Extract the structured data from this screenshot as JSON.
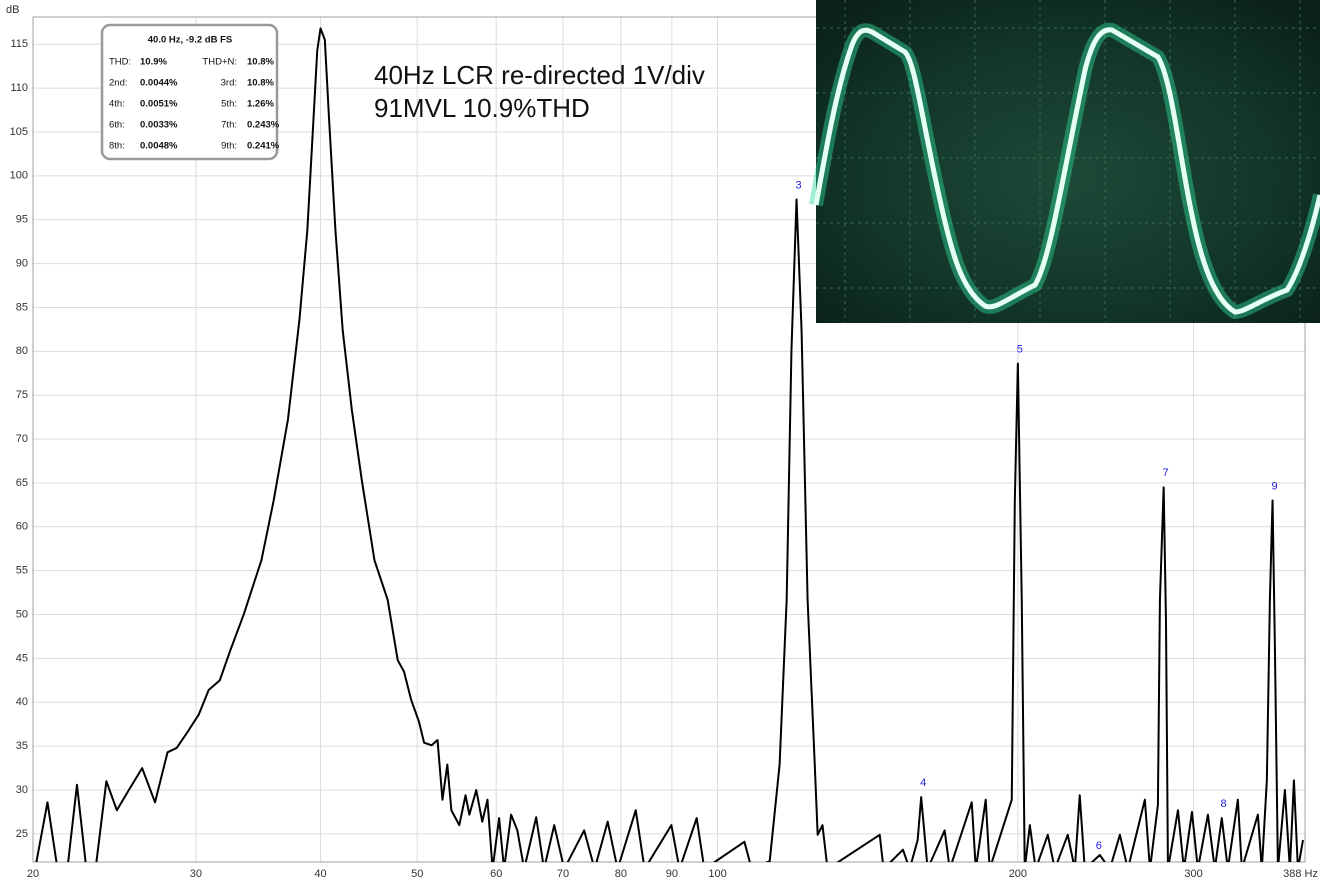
{
  "chart_data": {
    "type": "line",
    "ylabel": "dB",
    "annotations": [
      "40Hz LCR re-directed 1V/div",
      "91MVL 10.9%THD"
    ],
    "xscale": "log",
    "grid": true,
    "color": "#000000",
    "xlim": [
      20.6,
      388
    ],
    "ylim": [
      21.8,
      118.1
    ],
    "xticks": [
      20,
      30,
      40,
      50,
      60,
      70,
      80,
      90,
      100,
      200,
      300,
      {
        "value": 388,
        "label": "388 Hz"
      }
    ],
    "yticks": [
      25,
      30,
      35,
      40,
      45,
      50,
      55,
      60,
      65,
      70,
      75,
      80,
      85,
      90,
      95,
      100,
      105,
      110,
      115
    ],
    "x": [
      20.7,
      21.3,
      21.8,
      22.3,
      22.8,
      23.3,
      23.8,
      24.4,
      25.0,
      25.7,
      26.5,
      27.3,
      28.1,
      28.7,
      29.5,
      30.2,
      30.9,
      31.7,
      32.5,
      33.5,
      34.9,
      35.9,
      37.1,
      38.1,
      38.8,
      39.3,
      39.7,
      40,
      40.4,
      40.8,
      41.4,
      42.1,
      43.0,
      44.0,
      45.3,
      46.7,
      47.8,
      48.5,
      49.3,
      50.2,
      50.8,
      51.7,
      52.4,
      53.0,
      53.6,
      54.1,
      55.1,
      55.9,
      56.4,
      57.3,
      58.1,
      58.8,
      59.5,
      60.4,
      61.1,
      62.1,
      63.0,
      64.0,
      65.8,
      67.0,
      68.6,
      70.2,
      73.5,
      75.3,
      77.6,
      79.4,
      82.8,
      84.5,
      89.9,
      91.6,
      95.3,
      97.0,
      106.4,
      108.2,
      112.8,
      115.4,
      117.3,
      118.6,
      120,
      121.4,
      123.1,
      125.1,
      126.0,
      127.4,
      128.9,
      145.4,
      146.7,
      153.4,
      155.8,
      158.7,
      160,
      162.4,
      168.9,
      170.9,
      179.8,
      181.5,
      185.7,
      187.4,
      197.2,
      198.6,
      200,
      201.8,
      203.2,
      205.6,
      208.4,
      214.3,
      217.8,
      224.4,
      228.1,
      230.7,
      233.4,
      241.6,
      247.3,
      253.1,
      257.8,
      268.1,
      271.3,
      276.3,
      277.6,
      280,
      281.5,
      282.8,
      289.4,
      293.4,
      298.9,
      303.0,
      310.1,
      315.1,
      320.2,
      324.7,
      332.3,
      335.4,
      348.0,
      351.2,
      355.3,
      357.8,
      360,
      362.0,
      364.5,
      370.4,
      374.7,
      378.2,
      381.7,
      386.2
    ],
    "values": [
      21,
      28.6,
      21,
      21,
      30.6,
      21,
      21,
      31,
      27.7,
      30,
      32.5,
      28.6,
      34.3,
      34.8,
      36.8,
      38.6,
      41.4,
      42.5,
      46,
      50,
      56.2,
      63,
      72.2,
      83.6,
      93.8,
      105.2,
      114.3,
      116.8,
      115.5,
      106.4,
      93.8,
      82.4,
      73.3,
      65.3,
      56.2,
      51.7,
      44.8,
      43.5,
      40.3,
      37.8,
      35.4,
      35.1,
      35.7,
      28.9,
      32.9,
      27.7,
      26,
      29.4,
      27.2,
      30,
      26.4,
      28.9,
      21,
      26.8,
      21,
      27.2,
      25.4,
      21,
      26.9,
      21,
      26,
      21,
      25.4,
      21,
      26.4,
      21,
      27.7,
      21,
      26,
      21,
      26.8,
      21,
      24.1,
      21,
      21.9,
      32.9,
      51.7,
      80.1,
      97.3,
      82.4,
      51.7,
      33.4,
      24.9,
      26,
      21,
      24.9,
      21,
      23.2,
      21,
      24.3,
      29.2,
      21,
      25.4,
      21,
      28.6,
      21,
      28.9,
      21,
      28.9,
      63,
      78.6,
      51.7,
      21,
      26,
      21,
      24.9,
      21,
      24.9,
      21,
      29.4,
      21,
      22.6,
      21,
      24.9,
      21,
      28.9,
      21,
      28.3,
      51.7,
      64.5,
      49.4,
      21,
      27.7,
      21,
      27.5,
      21,
      27.2,
      21,
      26.8,
      21,
      28.9,
      21,
      27.2,
      21,
      31.1,
      51.7,
      63,
      45.9,
      21,
      30,
      21,
      31.1,
      21,
      24.3
    ],
    "harmonics": [
      {
        "label": "3",
        "x": 120,
        "y": 97.3
      },
      {
        "label": "4",
        "x": 160,
        "y": 29.2
      },
      {
        "label": "5",
        "x": 200,
        "y": 78.6
      },
      {
        "label": "6",
        "x": 240,
        "y": 22.0
      },
      {
        "label": "7",
        "x": 280,
        "y": 64.5
      },
      {
        "label": "8",
        "x": 320,
        "y": 26.8
      },
      {
        "label": "9",
        "x": 360,
        "y": 63
      }
    ]
  },
  "info_box": {
    "title": "40.0 Hz, -9.2 dB FS",
    "rows": [
      [
        "THD:",
        "10.9%",
        "THD+N:",
        "10.8%"
      ],
      [
        "2nd:",
        "0.0044%",
        "3rd:",
        "10.8%"
      ],
      [
        "4th:",
        "0.0051%",
        "5th:",
        "1.26%"
      ],
      [
        "6th:",
        "0.0033%",
        "7th:",
        "0.243%"
      ],
      [
        "8th:",
        "0.0048%",
        "9th:",
        "0.241%"
      ]
    ]
  }
}
